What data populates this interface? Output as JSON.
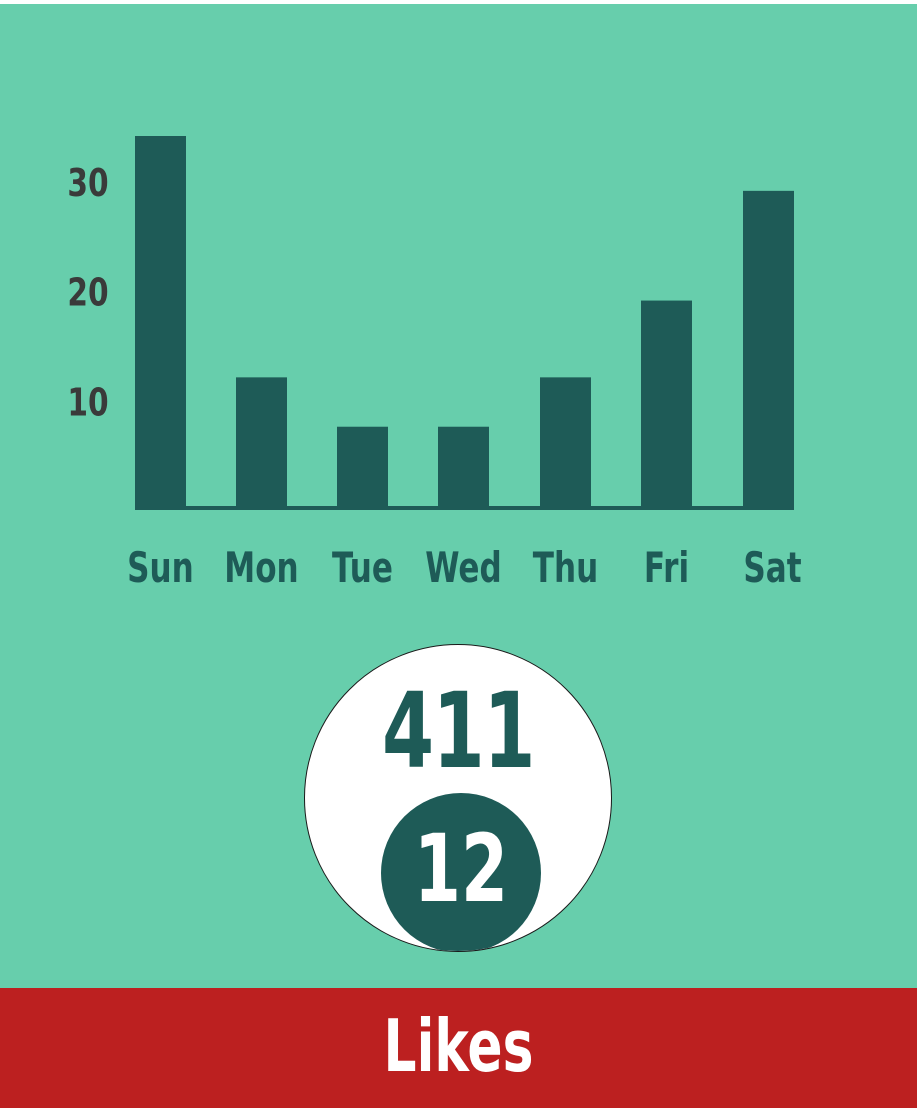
{
  "chart_data": {
    "type": "bar",
    "categories": [
      "Sun",
      "Mon",
      "Tue",
      "Wed",
      "Thu",
      "Fri",
      "Sat"
    ],
    "values": [
      34,
      12,
      7.5,
      7.5,
      12,
      19,
      29
    ],
    "yticks": [
      10,
      20,
      30
    ],
    "ylim": [
      0,
      34
    ],
    "grid": false,
    "colors": {
      "background": "#67CEAC",
      "bar": "#1E5B57",
      "tick_text": "#3a3a3a",
      "category_text": "#1E5B57"
    }
  },
  "badge": {
    "total": "411",
    "sub_value": "12"
  },
  "footer": {
    "label": "Likes",
    "color": "#BC2020"
  }
}
